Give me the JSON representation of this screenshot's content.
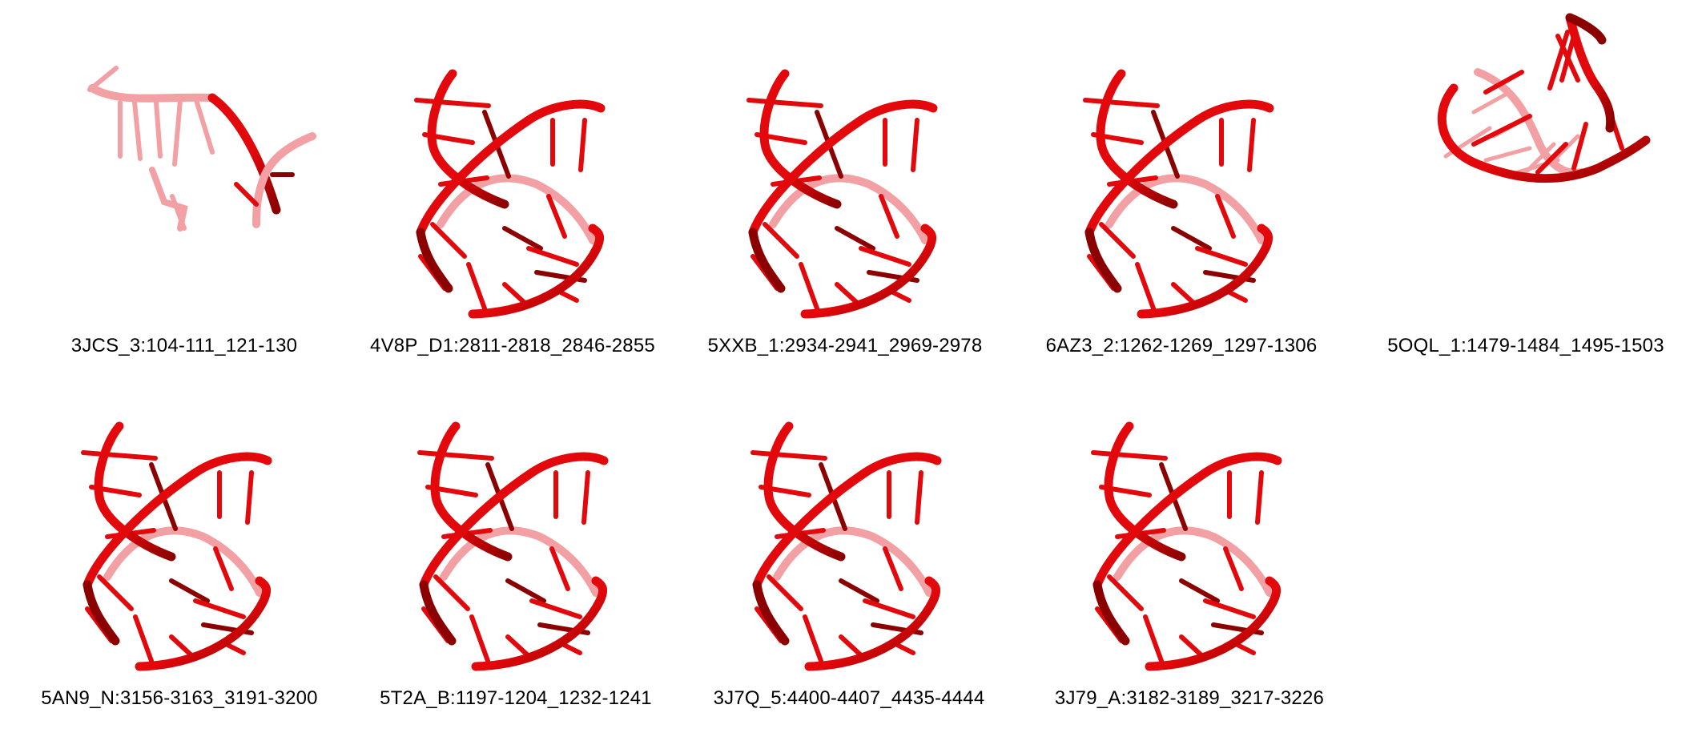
{
  "figure": {
    "structures": [
      {
        "label": "3JCS_3:104-111_121-130",
        "style": "open"
      },
      {
        "label": "4V8P_D1:2811-2818_2846-2855",
        "style": "helix"
      },
      {
        "label": "5XXB_1:2934-2941_2969-2978",
        "style": "helix"
      },
      {
        "label": "6AZ3_2:1262-1269_1297-1306",
        "style": "helix"
      },
      {
        "label": "5OQL_1:1479-1484_1495-1503",
        "style": "bowl"
      },
      {
        "label": "5AN9_N:3156-3163_3191-3200",
        "style": "helix"
      },
      {
        "label": "5T2A_B:1197-1204_1232-1241",
        "style": "helix"
      },
      {
        "label": "3J7Q_5:4400-4407_4435-4444",
        "style": "helix"
      },
      {
        "label": "3J79_A:3182-3189_3217-3226",
        "style": "helix"
      }
    ],
    "colors": {
      "backbone": "#e3080b",
      "shadow": "#8b0000",
      "faded": "#f2a0a3"
    }
  }
}
